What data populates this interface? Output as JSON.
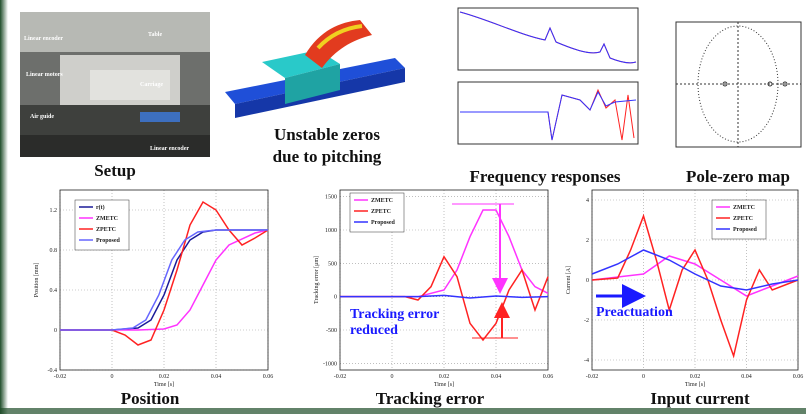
{
  "setup": {
    "caption": "Setup",
    "labels": [
      "Linear encoder",
      "Table",
      "Linear motors",
      "Carriage",
      "Air guide",
      "Linear encoder"
    ]
  },
  "zeros": {
    "caption": [
      "Unstable zeros",
      "due to pitching"
    ]
  },
  "frequency": {
    "caption": "Frequency responses"
  },
  "pole_zero": {
    "caption": "Pole-zero map"
  },
  "chart_data": [
    {
      "type": "line",
      "title": "Position",
      "xlabel": "Time [s]",
      "ylabel": "Position [mm]",
      "xlim": [
        -0.02,
        0.06
      ],
      "xticks": [
        -0.02,
        0,
        0.02,
        0.04,
        0.06
      ],
      "ylim": [
        -0.4,
        1.4
      ],
      "yticks": [
        -0.4,
        0,
        0.4,
        0.8,
        1.2
      ],
      "grid": true,
      "series": [
        {
          "name": "r(t)",
          "color": "#1a1a99",
          "x": [
            -0.02,
            0,
            0.01,
            0.015,
            0.02,
            0.025,
            0.03,
            0.035,
            0.04,
            0.06
          ],
          "values": [
            0,
            0,
            0.02,
            0.1,
            0.35,
            0.7,
            0.9,
            0.98,
            1,
            1
          ]
        },
        {
          "name": "ZMETC",
          "color": "#ff33ff",
          "x": [
            -0.02,
            0,
            0.01,
            0.02,
            0.025,
            0.03,
            0.035,
            0.04,
            0.045,
            0.055,
            0.06
          ],
          "values": [
            0,
            0,
            0,
            0.01,
            0.05,
            0.2,
            0.45,
            0.7,
            0.85,
            0.97,
            1
          ]
        },
        {
          "name": "ZPETC",
          "color": "#ff2222",
          "x": [
            -0.02,
            0,
            0.005,
            0.01,
            0.015,
            0.02,
            0.025,
            0.03,
            0.035,
            0.04,
            0.045,
            0.05,
            0.055,
            0.06
          ],
          "values": [
            0,
            0,
            -0.05,
            -0.15,
            -0.1,
            0.2,
            0.6,
            1.05,
            1.28,
            1.2,
            1.0,
            0.85,
            0.92,
            1.0
          ]
        },
        {
          "name": "Proposed",
          "color": "#6666ff",
          "x": [
            -0.02,
            0,
            0.008,
            0.013,
            0.018,
            0.023,
            0.028,
            0.033,
            0.04,
            0.06
          ],
          "values": [
            0,
            0,
            0.02,
            0.1,
            0.35,
            0.7,
            0.9,
            0.98,
            1,
            1
          ]
        }
      ]
    },
    {
      "type": "line",
      "title": "Tracking error",
      "xlabel": "Time [s]",
      "ylabel": "Tracking error [μm]",
      "xlim": [
        -0.02,
        0.06
      ],
      "xticks": [
        -0.02,
        0,
        0.02,
        0.04,
        0.06
      ],
      "ylim": [
        -1100,
        1600
      ],
      "yticks": [
        -1000,
        -500,
        0,
        500,
        1000,
        1500
      ],
      "grid": true,
      "annotation": [
        "Tracking error",
        "reduced"
      ],
      "series": [
        {
          "name": "ZMETC",
          "color": "#ff33ff",
          "x": [
            -0.02,
            0.01,
            0.02,
            0.025,
            0.03,
            0.035,
            0.04,
            0.045,
            0.05,
            0.055,
            0.06
          ],
          "values": [
            0,
            0,
            100,
            400,
            900,
            1300,
            1300,
            900,
            400,
            150,
            50
          ]
        },
        {
          "name": "ZPETC",
          "color": "#ff2222",
          "x": [
            -0.02,
            0.005,
            0.01,
            0.015,
            0.02,
            0.025,
            0.03,
            0.035,
            0.04,
            0.045,
            0.05,
            0.055,
            0.06
          ],
          "values": [
            0,
            0,
            -50,
            150,
            600,
            300,
            -400,
            -650,
            -400,
            100,
            400,
            -200,
            300
          ]
        },
        {
          "name": "Proposed",
          "color": "#3333ff",
          "x": [
            -0.02,
            0.01,
            0.02,
            0.03,
            0.04,
            0.05,
            0.06
          ],
          "values": [
            0,
            0,
            20,
            -20,
            10,
            -10,
            0
          ]
        }
      ]
    },
    {
      "type": "line",
      "title": "Input current",
      "xlabel": "Time [s]",
      "ylabel": "Current [A]",
      "xlim": [
        -0.02,
        0.06
      ],
      "xticks": [
        -0.02,
        0,
        0.02,
        0.04,
        0.06
      ],
      "ylim": [
        -4.5,
        4.5
      ],
      "yticks": [
        -4,
        -2,
        0,
        2,
        4
      ],
      "grid": true,
      "annotation": [
        "Preactuation"
      ],
      "series": [
        {
          "name": "ZMETC",
          "color": "#ff33ff",
          "x": [
            -0.02,
            0,
            0.01,
            0.02,
            0.03,
            0.04,
            0.05,
            0.06
          ],
          "values": [
            0,
            0.3,
            1.2,
            0.8,
            0,
            -0.8,
            -0.3,
            0.2
          ]
        },
        {
          "name": "ZPETC",
          "color": "#ff2222",
          "x": [
            -0.02,
            -0.01,
            -0.005,
            0,
            0.005,
            0.01,
            0.015,
            0.02,
            0.025,
            0.03,
            0.035,
            0.04,
            0.045,
            0.05,
            0.06
          ],
          "values": [
            0,
            0.1,
            1.5,
            3.2,
            1,
            -1.5,
            0.5,
            1.5,
            0,
            -2,
            -3.8,
            -1,
            0.5,
            -0.5,
            0
          ]
        },
        {
          "name": "Proposed",
          "color": "#3333ff",
          "x": [
            -0.02,
            -0.01,
            0,
            0.01,
            0.02,
            0.03,
            0.04,
            0.05,
            0.06
          ],
          "values": [
            0.3,
            0.8,
            1.5,
            1.0,
            0.3,
            -0.3,
            -0.5,
            -0.2,
            0
          ]
        }
      ]
    }
  ]
}
